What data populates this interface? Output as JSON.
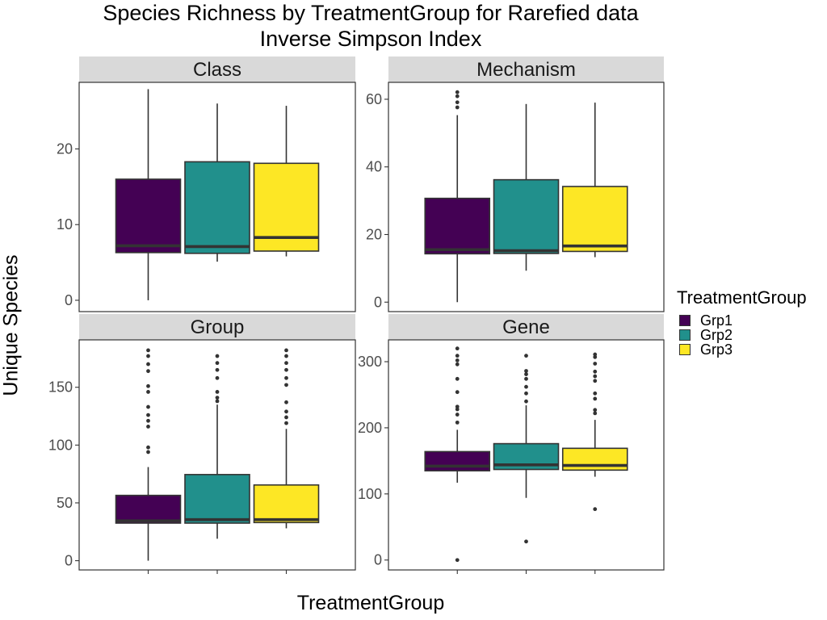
{
  "chart_data": {
    "type": "box",
    "title": "Species Richness by TreatmentGroup for Rarefied data",
    "subtitle": "Inverse Simpson Index",
    "xlabel": "TreatmentGroup",
    "ylabel": "Unique Species",
    "legend": {
      "title": "TreatmentGroup",
      "position": "right",
      "items": [
        {
          "label": "Grp1",
          "color": "#440154"
        },
        {
          "label": "Grp2",
          "color": "#21908C"
        },
        {
          "label": "Grp3",
          "color": "#FDE725"
        }
      ]
    },
    "groups": [
      "Grp1",
      "Grp2",
      "Grp3"
    ],
    "grid": false,
    "panels": [
      {
        "title": "Class",
        "ylim": [
          -1.5,
          28.8
        ],
        "yticks": [
          0,
          10,
          20
        ],
        "boxes": [
          {
            "group": "Grp1",
            "min": 0,
            "q1": 6.3,
            "median": 7.2,
            "q3": 16,
            "max": 27.9,
            "outliers": []
          },
          {
            "group": "Grp2",
            "min": 5.1,
            "q1": 6.2,
            "median": 7.1,
            "q3": 18.3,
            "max": 26,
            "outliers": []
          },
          {
            "group": "Grp3",
            "min": 5.8,
            "q1": 6.5,
            "median": 8.3,
            "q3": 18.1,
            "max": 25.7,
            "outliers": []
          }
        ]
      },
      {
        "title": "Mechanism",
        "ylim": [
          -2.8,
          65
        ],
        "yticks": [
          0,
          20,
          40,
          60
        ],
        "boxes": [
          {
            "group": "Grp1",
            "min": 0,
            "q1": 14.3,
            "median": 15.5,
            "q3": 30.7,
            "max": 55.3,
            "outliers": [
              57.6,
              59.1,
              60.9,
              62.1
            ]
          },
          {
            "group": "Grp2",
            "min": 9.3,
            "q1": 14.4,
            "median": 15.2,
            "q3": 36.2,
            "max": 58.6,
            "outliers": []
          },
          {
            "group": "Grp3",
            "min": 13.3,
            "q1": 15,
            "median": 16.6,
            "q3": 34.2,
            "max": 59,
            "outliers": []
          }
        ]
      },
      {
        "title": "Group",
        "ylim": [
          -8,
          191
        ],
        "yticks": [
          0,
          50,
          100,
          150
        ],
        "boxes": [
          {
            "group": "Grp1",
            "min": 0,
            "q1": 32.5,
            "median": 34.5,
            "q3": 56.5,
            "max": 81,
            "outliers": [
              94,
              98,
              116,
              121,
              126,
              133,
              146,
              151,
              164,
              170,
              177,
              182
            ]
          },
          {
            "group": "Grp2",
            "min": 19,
            "q1": 32.5,
            "median": 35.5,
            "q3": 74.5,
            "max": 135,
            "outliers": [
              138,
              141,
              146,
              158,
              165,
              171,
              177
            ]
          },
          {
            "group": "Grp3",
            "min": 28,
            "q1": 33,
            "median": 35.5,
            "q3": 65.5,
            "max": 114,
            "outliers": [
              119,
              124,
              129,
              137,
              152,
              158,
              165,
              171,
              177,
              182
            ]
          }
        ]
      },
      {
        "title": "Gene",
        "ylim": [
          -15,
          333
        ],
        "yticks": [
          0,
          100,
          200,
          300
        ],
        "boxes": [
          {
            "group": "Grp1",
            "min": 117,
            "q1": 135,
            "median": 142,
            "q3": 164,
            "max": 197,
            "outliers": [
              0,
              208,
              220,
              228,
              232,
              254,
              274,
              296,
              302,
              309,
              320
            ]
          },
          {
            "group": "Grp2",
            "min": 94,
            "q1": 137,
            "median": 144,
            "q3": 176,
            "max": 234,
            "outliers": [
              28,
              240,
              252,
              262,
              274,
              281,
              286,
              309
            ]
          },
          {
            "group": "Grp3",
            "min": 126,
            "q1": 136,
            "median": 143,
            "q3": 169,
            "max": 212,
            "outliers": [
              77,
              222,
              227,
              244,
              252,
              271,
              278,
              285,
              297,
              307,
              311
            ]
          }
        ]
      }
    ]
  }
}
